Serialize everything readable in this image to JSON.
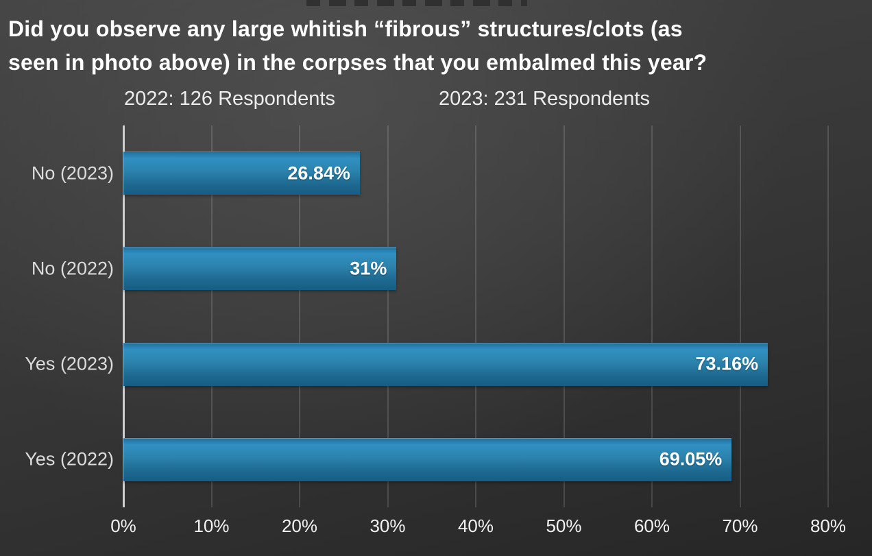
{
  "title": {
    "line1": "Did you observe any large whitish “fibrous” structures/clots (as",
    "line2": "seen in photo above) in the corpses that you embalmed this year?"
  },
  "subtitle": {
    "respondents_2022": "2022: 126 Respondents",
    "respondents_2023": "2023: 231 Respondents"
  },
  "chart_data": {
    "type": "bar",
    "orientation": "horizontal",
    "title": "Did you observe any large whitish “fibrous” structures/clots (as seen in photo above) in the corpses that you embalmed this year?",
    "annotations": [
      "2022: 126 Respondents",
      "2023: 231 Respondents"
    ],
    "categories": [
      "No (2023)",
      "No (2022)",
      "Yes (2023)",
      "Yes (2022)"
    ],
    "values": [
      26.84,
      31,
      73.16,
      69.05
    ],
    "value_labels": [
      "26.84%",
      "31%",
      "73.16%",
      "69.05%"
    ],
    "xlim": [
      0,
      80
    ],
    "tick_values": [
      0,
      10,
      20,
      30,
      40,
      50,
      60,
      70,
      80
    ],
    "tick_labels": [
      "0%",
      "10%",
      "20%",
      "30%",
      "40%",
      "50%",
      "60%",
      "70%",
      "80%"
    ],
    "grid": true,
    "bar_color": "#2781ab",
    "background_color": "#333333",
    "text_color": "#ffffff",
    "legend": "none"
  }
}
